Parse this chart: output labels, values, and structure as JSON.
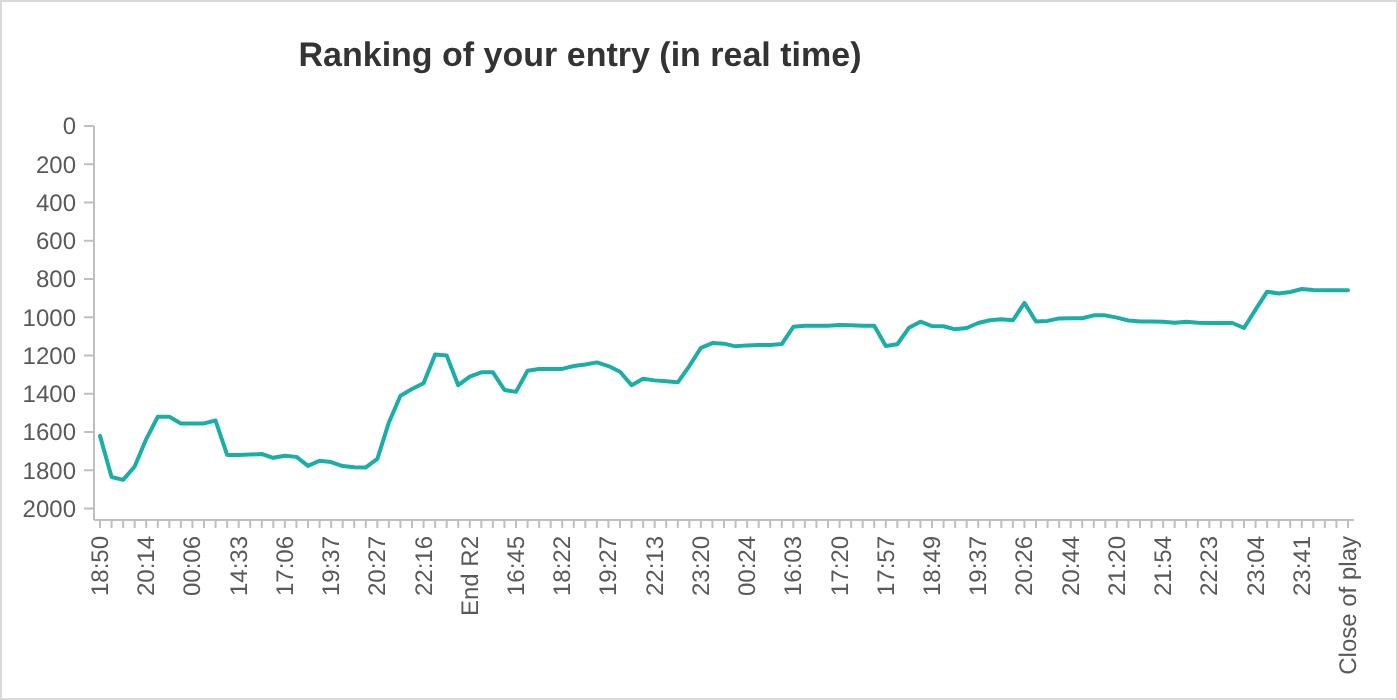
{
  "chart_data": {
    "type": "line",
    "title": "Ranking of your entry (in real time)",
    "categories": [
      "18:50",
      null,
      null,
      null,
      "20:14",
      null,
      null,
      null,
      "00:06",
      null,
      null,
      null,
      "14:33",
      null,
      null,
      null,
      "17:06",
      null,
      null,
      null,
      "19:37",
      null,
      null,
      null,
      "20:27",
      null,
      null,
      null,
      "22:16",
      null,
      null,
      null,
      "End R2",
      null,
      null,
      null,
      "16:45",
      null,
      null,
      null,
      "18:22",
      null,
      null,
      null,
      "19:27",
      null,
      null,
      null,
      "22:13",
      null,
      null,
      null,
      "23:20",
      null,
      null,
      null,
      "00:24",
      null,
      null,
      null,
      "16:03",
      null,
      null,
      null,
      "17:20",
      null,
      null,
      null,
      "17:57",
      null,
      null,
      null,
      "18:49",
      null,
      null,
      null,
      "19:37",
      null,
      null,
      null,
      "20:26",
      null,
      null,
      null,
      "20:44",
      null,
      null,
      null,
      "21:20",
      null,
      null,
      null,
      "21:54",
      null,
      null,
      null,
      "22:23",
      null,
      null,
      null,
      "23:04",
      null,
      null,
      null,
      "23:41",
      null,
      null,
      null,
      "Close of play"
    ],
    "series": [
      {
        "color": "#1aaea6",
        "values": [
          1620,
          1835,
          1850,
          1780,
          1637,
          1520,
          1520,
          1555,
          1555,
          1555,
          1540,
          1720,
          1720,
          1718,
          1715,
          1735,
          1724,
          1730,
          1777,
          1750,
          1757,
          1778,
          1784,
          1785,
          1740,
          1550,
          1410,
          1375,
          1345,
          1195,
          1200,
          1355,
          1310,
          1288,
          1288,
          1380,
          1390,
          1280,
          1270,
          1270,
          1270,
          1255,
          1247,
          1236,
          1255,
          1285,
          1355,
          1322,
          1330,
          1335,
          1340,
          1255,
          1160,
          1135,
          1138,
          1152,
          1147,
          1145,
          1145,
          1140,
          1050,
          1044,
          1044,
          1044,
          1040,
          1042,
          1044,
          1044,
          1150,
          1141,
          1055,
          1023,
          1046,
          1047,
          1063,
          1056,
          1030,
          1016,
          1010,
          1016,
          925,
          1022,
          1019,
          1006,
          1005,
          1005,
          990,
          990,
          1002,
          1017,
          1022,
          1022,
          1024,
          1029,
          1024,
          1029,
          1030,
          1030,
          1030,
          1056,
          960,
          866,
          876,
          868,
          852,
          858,
          859,
          859,
          859
        ]
      }
    ],
    "ylim": [
      2060,
      0
    ],
    "yticks": [
      0,
      200,
      400,
      600,
      800,
      1000,
      1200,
      1400,
      1600,
      1800,
      2000
    ],
    "grid": false,
    "marker": "none",
    "line_style": "solid"
  }
}
